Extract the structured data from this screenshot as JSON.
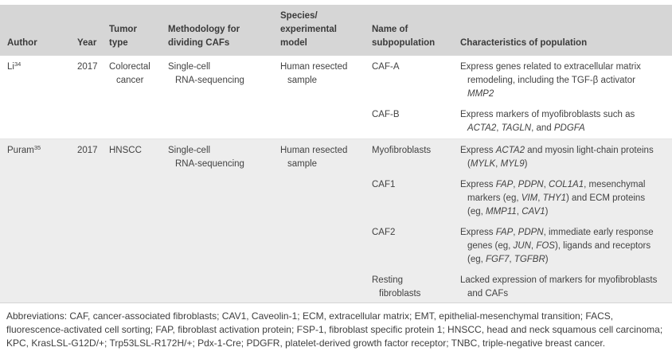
{
  "colors": {
    "header_bg": "#d6d6d6",
    "stripe_bg": "#ededed",
    "text": "#424242"
  },
  "header": {
    "columns": [
      "Author",
      "Year",
      "Tumor\ntype",
      "Methodology for\ndividing CAFs",
      "Species/\nexperimental\nmodel",
      "Name of\nsubpopulation",
      "Characteristics of population"
    ]
  },
  "table": {
    "rows": [
      {
        "author": "Li",
        "citation": "34",
        "year": "2017",
        "tumor_type": "Colorectal\ncancer",
        "methodology": "Single-cell\nRNA-sequencing",
        "species": "Human resected\nsample",
        "shaded": false,
        "subpopulations": [
          {
            "name": "CAF-A",
            "characteristics": [
              {
                "t": "Express genes related to extracellular matrix remodeling, including the TGF-β activator "
              },
              {
                "t": "MMP2",
                "i": true
              }
            ]
          },
          {
            "name": "CAF-B",
            "characteristics": [
              {
                "t": "Express markers of myofibroblasts such as "
              },
              {
                "t": "ACTA2",
                "i": true
              },
              {
                "t": ", "
              },
              {
                "t": "TAGLN",
                "i": true
              },
              {
                "t": ", and "
              },
              {
                "t": "PDGFA",
                "i": true
              }
            ]
          }
        ]
      },
      {
        "author": "Puram",
        "citation": "35",
        "year": "2017",
        "tumor_type": "HNSCC",
        "methodology": "Single-cell\nRNA-sequencing",
        "species": "Human resected\nsample",
        "shaded": true,
        "subpopulations": [
          {
            "name": "Myofibroblasts",
            "characteristics": [
              {
                "t": "Express "
              },
              {
                "t": "ACTA2",
                "i": true
              },
              {
                "t": " and myosin light-chain proteins ("
              },
              {
                "t": "MYLK",
                "i": true
              },
              {
                "t": ", "
              },
              {
                "t": "MYL9",
                "i": true
              },
              {
                "t": ")"
              }
            ]
          },
          {
            "name": "CAF1",
            "characteristics": [
              {
                "t": "Express "
              },
              {
                "t": "FAP",
                "i": true
              },
              {
                "t": ", "
              },
              {
                "t": "PDPN",
                "i": true
              },
              {
                "t": ", "
              },
              {
                "t": "COL1A1",
                "i": true
              },
              {
                "t": ", mesenchymal markers (eg, "
              },
              {
                "t": "VIM",
                "i": true
              },
              {
                "t": ", "
              },
              {
                "t": "THY1",
                "i": true
              },
              {
                "t": ") and ECM proteins (eg, "
              },
              {
                "t": "MMP11",
                "i": true
              },
              {
                "t": ", "
              },
              {
                "t": "CAV1",
                "i": true
              },
              {
                "t": ")"
              }
            ]
          },
          {
            "name": "CAF2",
            "characteristics": [
              {
                "t": "Express "
              },
              {
                "t": "FAP",
                "i": true
              },
              {
                "t": ", "
              },
              {
                "t": "PDPN",
                "i": true
              },
              {
                "t": ", immediate early response genes (eg, "
              },
              {
                "t": "JUN",
                "i": true
              },
              {
                "t": ", "
              },
              {
                "t": "FOS",
                "i": true
              },
              {
                "t": "), ligands and receptors (eg, "
              },
              {
                "t": "FGF7",
                "i": true
              },
              {
                "t": ", "
              },
              {
                "t": "TGFBR",
                "i": true
              },
              {
                "t": ")"
              }
            ]
          },
          {
            "name": "Resting\nfibroblasts",
            "characteristics": [
              {
                "t": "Lacked expression of markers for myofibroblasts and CAFs"
              }
            ]
          }
        ]
      }
    ]
  },
  "footnote": "Abbreviations: CAF, cancer-associated fibroblasts; CAV1, Caveolin-1; ECM, extracellular matrix; EMT, epithelial-mesenchymal transition; FACS, fluorescence-activated cell sorting; FAP, fibroblast activation protein; FSP-1, fibroblast specific protein 1; HNSCC, head and neck squamous cell carcinoma; KPC, KrasLSL-G12D/+; Trp53LSL-R172H/+; Pdx-1-Cre; PDGFR, platelet-derived growth factor receptor; TNBC, triple-negative breast cancer."
}
